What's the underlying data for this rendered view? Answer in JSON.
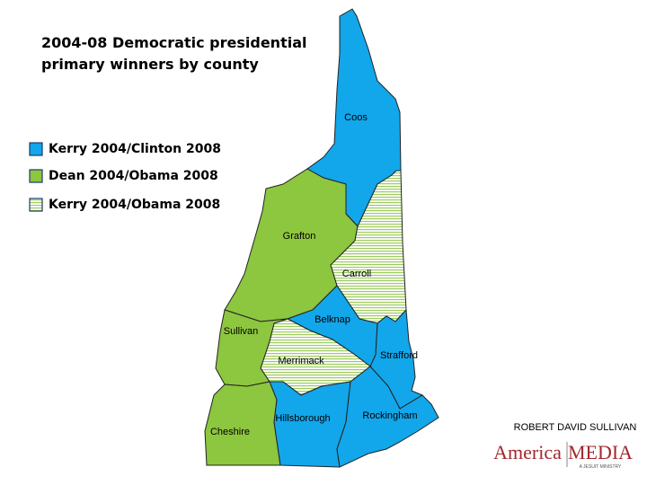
{
  "title": [
    "2004-08 Democratic presidential",
    "primary winners by county"
  ],
  "legend": [
    {
      "label": "Kerry 2004/Clinton 2008",
      "color": "#12a6ea",
      "counties": [
        "Coos",
        "Belknap",
        "Strafford",
        "Hillsborough",
        "Rockingham"
      ]
    },
    {
      "label": "Dean 2004/Obama 2008",
      "color": "#8dc63f",
      "counties": [
        "Grafton",
        "Sullivan",
        "Cheshire"
      ]
    },
    {
      "label": "Kerry 2004/Obama 2008",
      "color": "#9ccc5c",
      "counties": [
        "Carroll",
        "Merrimack"
      ]
    }
  ],
  "credit": "ROBERT DAVID SULLIVAN",
  "logo": {
    "left": "America",
    "right": "MEDIA",
    "tagline": "A JESUIT MINISTRY"
  }
}
